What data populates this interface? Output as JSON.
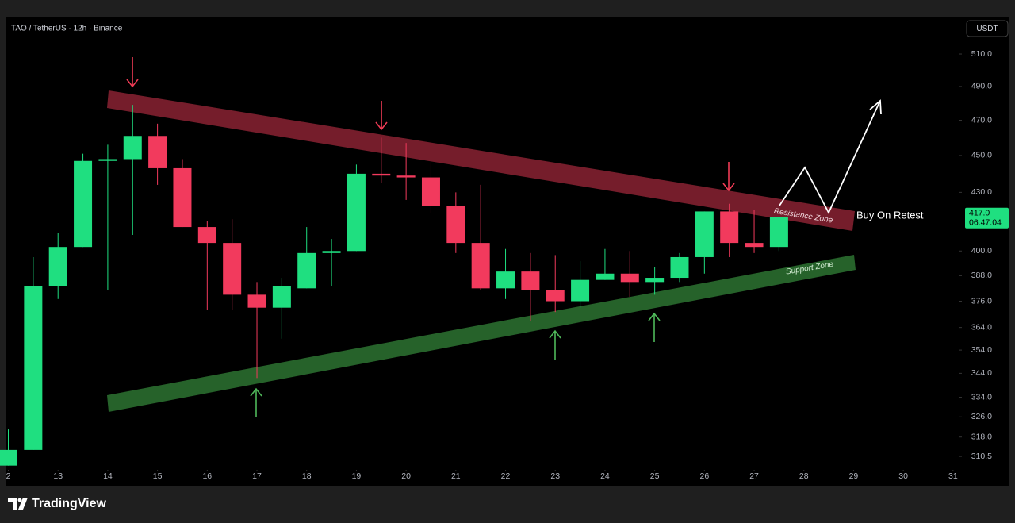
{
  "chart_data": {
    "type": "candlestick",
    "title": "TAO / TetherUS · 12h · Binance",
    "currency": "USDT",
    "x": [
      12,
      12.5,
      13,
      13.5,
      14,
      14.5,
      15,
      15.5,
      16,
      16.5,
      17,
      17.5,
      18,
      18.5,
      19,
      19.5,
      20,
      20.5,
      21,
      21.5,
      22,
      22.5,
      23,
      23.5,
      24,
      24.5,
      25,
      25.5,
      26,
      26.5,
      27,
      27.5
    ],
    "open": [
      307,
      313,
      383,
      402,
      447,
      448,
      461,
      443,
      412,
      404,
      379,
      373,
      382,
      399,
      400,
      440,
      439,
      438,
      423,
      404,
      382,
      390,
      381,
      376,
      386,
      389,
      385,
      387,
      397,
      420,
      404,
      402
    ],
    "high": [
      321,
      397,
      409,
      451,
      456,
      479,
      468,
      448,
      415,
      416,
      385,
      387,
      412,
      406,
      445,
      460,
      457,
      447,
      430,
      434,
      401,
      399,
      398,
      395,
      401,
      400,
      392,
      399,
      420,
      424,
      421,
      417
    ],
    "low": [
      307,
      313,
      377,
      402,
      381,
      408,
      434,
      412,
      372,
      372,
      342,
      359,
      382,
      383,
      400,
      435,
      426,
      419,
      399,
      381,
      377,
      367,
      371,
      373,
      386,
      378,
      379,
      385,
      389,
      397,
      399,
      400
    ],
    "close": [
      313,
      383,
      402,
      447,
      448,
      461,
      443,
      412,
      404,
      379,
      373,
      383,
      399,
      400,
      440,
      439,
      438,
      423,
      404,
      382,
      390,
      381,
      376,
      386,
      389,
      385,
      387,
      397,
      420,
      404,
      402,
      417
    ],
    "up_color": "#1fdf80",
    "down_color": "#f23a5d",
    "yscale": "log",
    "ylim": [
      306,
      533.5
    ],
    "yticks": [
      {
        "value": 510,
        "label": "510.0"
      },
      {
        "value": 490,
        "label": "490.0"
      },
      {
        "value": 470,
        "label": "470.0"
      },
      {
        "value": 450,
        "label": "450.0"
      },
      {
        "value": 430,
        "label": "430.0"
      },
      {
        "value": 400,
        "label": "400.0"
      },
      {
        "value": 388,
        "label": "388.0"
      },
      {
        "value": 376,
        "label": "376.0"
      },
      {
        "value": 364,
        "label": "364.0"
      },
      {
        "value": 354,
        "label": "354.0"
      },
      {
        "value": 344,
        "label": "344.0"
      },
      {
        "value": 334,
        "label": "334.0"
      },
      {
        "value": 326,
        "label": "326.0"
      },
      {
        "value": 318,
        "label": "318.0"
      },
      {
        "value": 310.5,
        "label": "310.5"
      }
    ],
    "xlim": [
      11.96,
      31.13
    ],
    "xticks": [
      {
        "value": 12,
        "label": "2"
      },
      13,
      14,
      15,
      16,
      17,
      18,
      19,
      20,
      21,
      22,
      23,
      24,
      25,
      26,
      27,
      28,
      29,
      30,
      31
    ],
    "current_price": {
      "value": 417,
      "label": "417.0"
    },
    "countdown": "06:47:04",
    "annotations": {
      "resistance": "Resistance Zone",
      "support": "Support Zone",
      "buy": "Buy On Retest"
    },
    "branding": "TradingView"
  }
}
